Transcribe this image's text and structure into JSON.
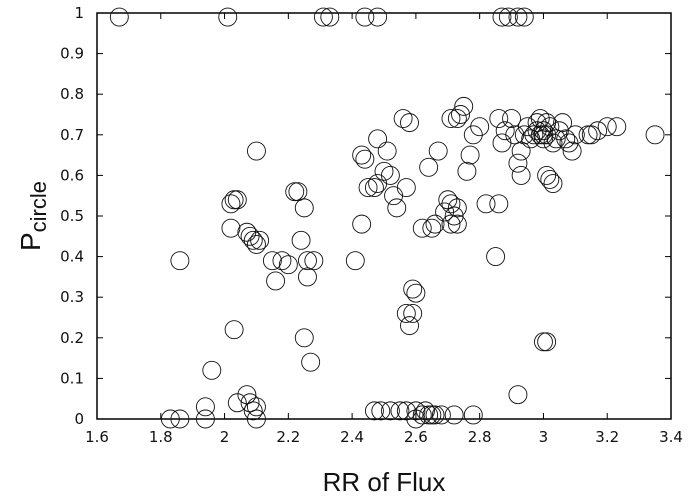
{
  "chart_data": {
    "type": "scatter",
    "title": "",
    "xlabel": "RR of Flux",
    "ylabel": {
      "main": "P",
      "sub": "circle"
    },
    "xlim": [
      1.6,
      3.4
    ],
    "ylim": [
      0,
      1
    ],
    "x_ticks": [
      "1.6",
      "1.8",
      "2",
      "2.2",
      "2.4",
      "2.6",
      "2.8",
      "3",
      "3.2",
      "3.4"
    ],
    "y_ticks": [
      "0",
      "0.1",
      "0.2",
      "0.3",
      "0.4",
      "0.5",
      "0.6",
      "0.7",
      "0.8",
      "0.9",
      "1"
    ],
    "grid": false,
    "legend": "none",
    "marker": "open-circle",
    "colors": {
      "marker": "#111111",
      "axis": "#000000",
      "background": "#ffffff"
    },
    "series": [
      {
        "points": [
          [
            1.67,
            0.99
          ],
          [
            2.01,
            0.99
          ],
          [
            2.31,
            0.99
          ],
          [
            2.33,
            0.99
          ],
          [
            2.44,
            0.99
          ],
          [
            2.48,
            0.99
          ],
          [
            2.87,
            0.99
          ],
          [
            2.89,
            0.99
          ],
          [
            2.92,
            0.99
          ],
          [
            2.94,
            0.99
          ],
          [
            1.83,
            0.0
          ],
          [
            1.86,
            0.0
          ],
          [
            1.94,
            0.0
          ],
          [
            1.94,
            0.03
          ],
          [
            2.04,
            0.04
          ],
          [
            2.07,
            0.06
          ],
          [
            2.08,
            0.04
          ],
          [
            2.1,
            0.03
          ],
          [
            2.1,
            0.0
          ],
          [
            2.09,
            0.02
          ],
          [
            1.96,
            0.12
          ],
          [
            2.03,
            0.22
          ],
          [
            2.25,
            0.2
          ],
          [
            2.27,
            0.14
          ],
          [
            1.86,
            0.39
          ],
          [
            2.02,
            0.47
          ],
          [
            2.02,
            0.53
          ],
          [
            2.03,
            0.54
          ],
          [
            2.04,
            0.54
          ],
          [
            2.07,
            0.46
          ],
          [
            2.08,
            0.45
          ],
          [
            2.09,
            0.44
          ],
          [
            2.1,
            0.43
          ],
          [
            2.11,
            0.44
          ],
          [
            2.1,
            0.66
          ],
          [
            2.15,
            0.39
          ],
          [
            2.16,
            0.34
          ],
          [
            2.18,
            0.39
          ],
          [
            2.2,
            0.38
          ],
          [
            2.22,
            0.56
          ],
          [
            2.23,
            0.56
          ],
          [
            2.24,
            0.44
          ],
          [
            2.25,
            0.52
          ],
          [
            2.26,
            0.35
          ],
          [
            2.26,
            0.39
          ],
          [
            2.28,
            0.39
          ],
          [
            2.41,
            0.39
          ],
          [
            2.43,
            0.48
          ],
          [
            2.43,
            0.65
          ],
          [
            2.44,
            0.64
          ],
          [
            2.45,
            0.57
          ],
          [
            2.47,
            0.57
          ],
          [
            2.48,
            0.69
          ],
          [
            2.48,
            0.58
          ],
          [
            2.5,
            0.61
          ],
          [
            2.51,
            0.66
          ],
          [
            2.52,
            0.6
          ],
          [
            2.53,
            0.55
          ],
          [
            2.54,
            0.52
          ],
          [
            2.56,
            0.74
          ],
          [
            2.58,
            0.73
          ],
          [
            2.57,
            0.57
          ],
          [
            2.57,
            0.26
          ],
          [
            2.58,
            0.23
          ],
          [
            2.59,
            0.26
          ],
          [
            2.59,
            0.32
          ],
          [
            2.6,
            0.31
          ],
          [
            2.62,
            0.47
          ],
          [
            2.64,
            0.62
          ],
          [
            2.65,
            0.47
          ],
          [
            2.66,
            0.48
          ],
          [
            2.67,
            0.66
          ],
          [
            2.69,
            0.51
          ],
          [
            2.7,
            0.54
          ],
          [
            2.71,
            0.53
          ],
          [
            2.72,
            0.5
          ],
          [
            2.73,
            0.52
          ],
          [
            2.71,
            0.48
          ],
          [
            2.73,
            0.48
          ],
          [
            2.71,
            0.74
          ],
          [
            2.73,
            0.74
          ],
          [
            2.74,
            0.75
          ],
          [
            2.75,
            0.77
          ],
          [
            2.76,
            0.61
          ],
          [
            2.77,
            0.65
          ],
          [
            2.78,
            0.7
          ],
          [
            2.8,
            0.72
          ],
          [
            2.82,
            0.53
          ],
          [
            2.85,
            0.4
          ],
          [
            2.86,
            0.53
          ],
          [
            2.86,
            0.74
          ],
          [
            2.87,
            0.68
          ],
          [
            2.88,
            0.71
          ],
          [
            2.9,
            0.74
          ],
          [
            2.91,
            0.7
          ],
          [
            2.92,
            0.63
          ],
          [
            2.93,
            0.6
          ],
          [
            2.93,
            0.66
          ],
          [
            2.94,
            0.7
          ],
          [
            2.95,
            0.72
          ],
          [
            2.96,
            0.69
          ],
          [
            2.97,
            0.7
          ],
          [
            2.98,
            0.71
          ],
          [
            2.98,
            0.73
          ],
          [
            2.99,
            0.7
          ],
          [
            2.99,
            0.74
          ],
          [
            3.0,
            0.7
          ],
          [
            3.0,
            0.69
          ],
          [
            3.0,
            0.71
          ],
          [
            3.01,
            0.7
          ],
          [
            3.01,
            0.73
          ],
          [
            3.02,
            0.72
          ],
          [
            3.03,
            0.68
          ],
          [
            3.04,
            0.69
          ],
          [
            3.05,
            0.71
          ],
          [
            3.06,
            0.73
          ],
          [
            3.07,
            0.69
          ],
          [
            3.08,
            0.68
          ],
          [
            3.09,
            0.66
          ],
          [
            3.1,
            0.7
          ],
          [
            3.14,
            0.7
          ],
          [
            3.15,
            0.7
          ],
          [
            3.17,
            0.71
          ],
          [
            3.2,
            0.72
          ],
          [
            3.23,
            0.72
          ],
          [
            3.35,
            0.7
          ],
          [
            3.01,
            0.6
          ],
          [
            3.02,
            0.59
          ],
          [
            3.03,
            0.58
          ],
          [
            2.92,
            0.06
          ],
          [
            3.0,
            0.19
          ],
          [
            3.01,
            0.19
          ],
          [
            2.47,
            0.02
          ],
          [
            2.49,
            0.02
          ],
          [
            2.52,
            0.02
          ],
          [
            2.55,
            0.02
          ],
          [
            2.57,
            0.02
          ],
          [
            2.6,
            0.02
          ],
          [
            2.6,
            0.0
          ],
          [
            2.62,
            0.01
          ],
          [
            2.63,
            0.02
          ],
          [
            2.64,
            0.01
          ],
          [
            2.65,
            0.01
          ],
          [
            2.66,
            0.01
          ],
          [
            2.68,
            0.01
          ],
          [
            2.72,
            0.01
          ],
          [
            2.78,
            0.01
          ]
        ]
      }
    ]
  }
}
